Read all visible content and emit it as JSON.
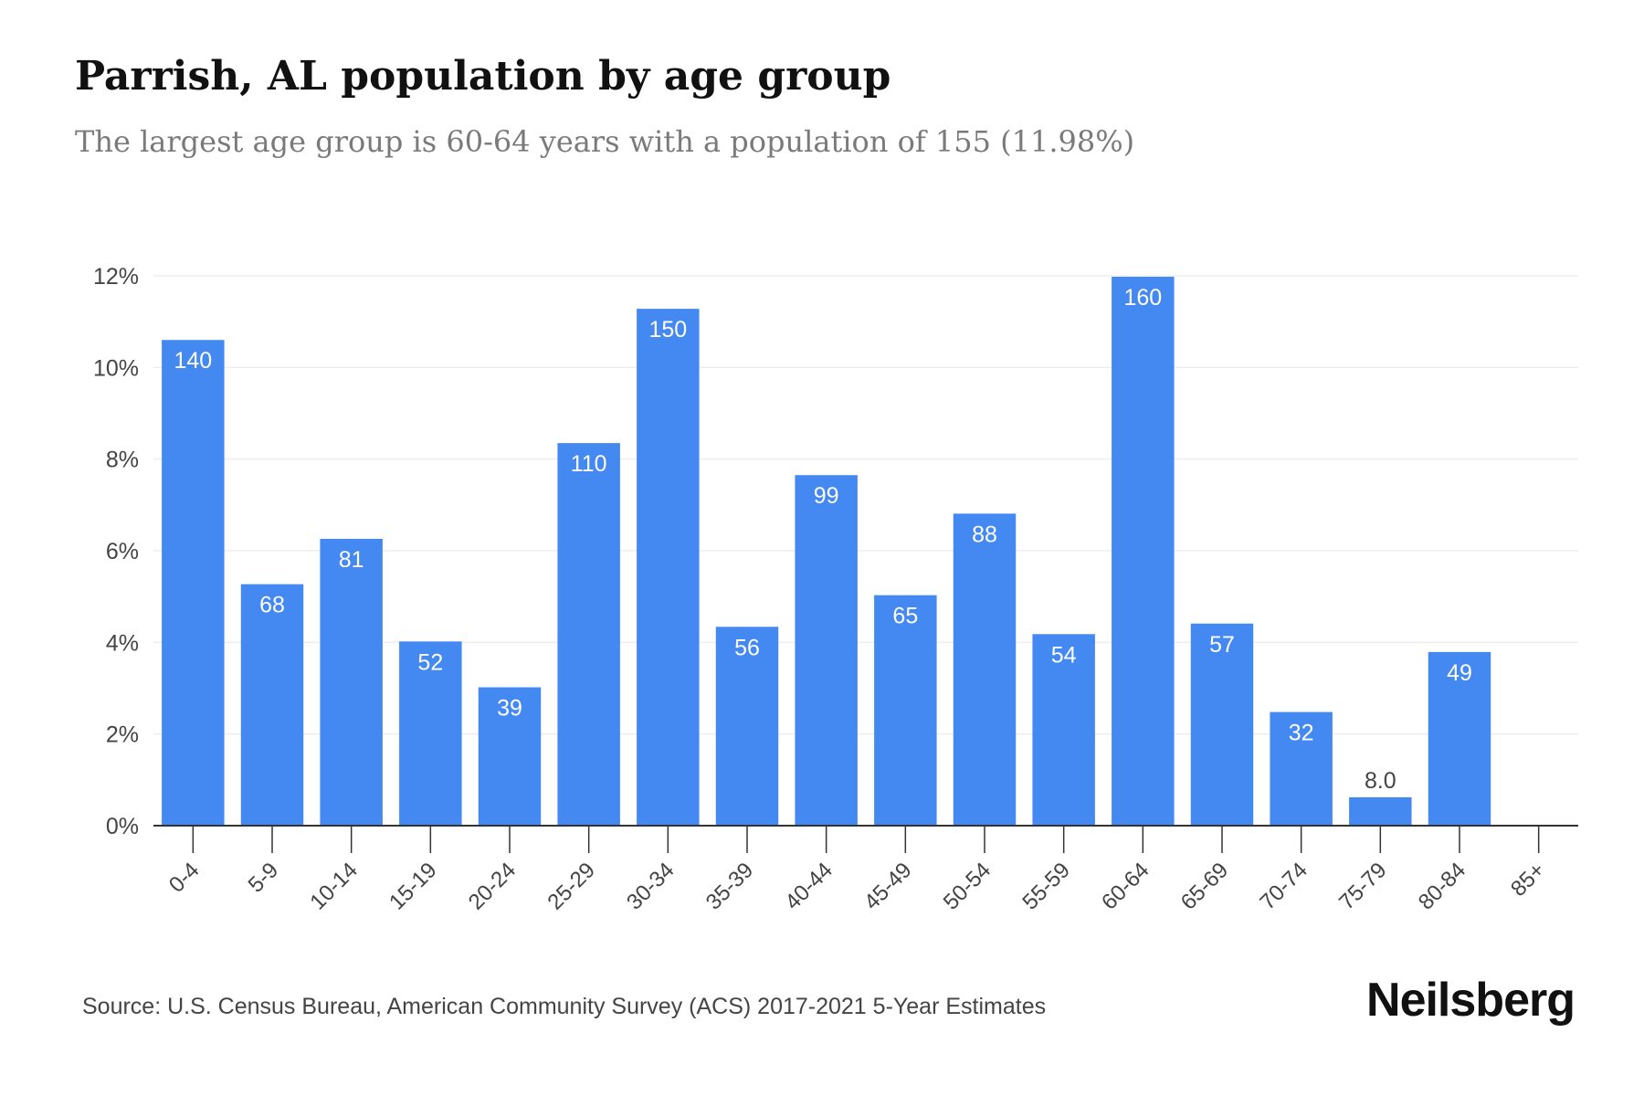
{
  "header": {
    "title": "Parrish, AL population by age group",
    "subtitle": "The largest age group is 60-64 years with a population of 155 (11.98%)"
  },
  "footer": {
    "source": "Source: U.S. Census Bureau, American Community Survey (ACS) 2017-2021 5-Year Estimates",
    "brand": "Neilsberg"
  },
  "colors": {
    "bar": "#4488f2",
    "grid": "#eeeeee",
    "axis": "#333333",
    "tick_text": "#444444"
  },
  "chart_data": {
    "type": "bar",
    "title": "Parrish, AL population by age group",
    "xlabel": "",
    "ylabel": "",
    "ylim": [
      0,
      12
    ],
    "y_ticks": [
      0,
      2,
      4,
      6,
      8,
      10,
      12
    ],
    "y_tick_labels": [
      "0%",
      "2%",
      "4%",
      "6%",
      "8%",
      "10%",
      "12%"
    ],
    "grid": true,
    "categories": [
      "0-4",
      "5-9",
      "10-14",
      "15-19",
      "20-24",
      "25-29",
      "30-34",
      "35-39",
      "40-44",
      "45-49",
      "50-54",
      "55-59",
      "60-64",
      "65-69",
      "70-74",
      "75-79",
      "80-84",
      "85+"
    ],
    "values_percent": [
      10.6,
      5.27,
      6.26,
      4.02,
      3.02,
      8.35,
      11.28,
      4.34,
      7.65,
      5.03,
      6.81,
      4.18,
      11.98,
      4.41,
      2.48,
      0.62,
      3.79,
      0
    ],
    "data_labels": [
      "140",
      "68",
      "81",
      "52",
      "39",
      "110",
      "150",
      "56",
      "99",
      "65",
      "88",
      "54",
      "160",
      "57",
      "32",
      "8.0",
      "49",
      ""
    ]
  }
}
